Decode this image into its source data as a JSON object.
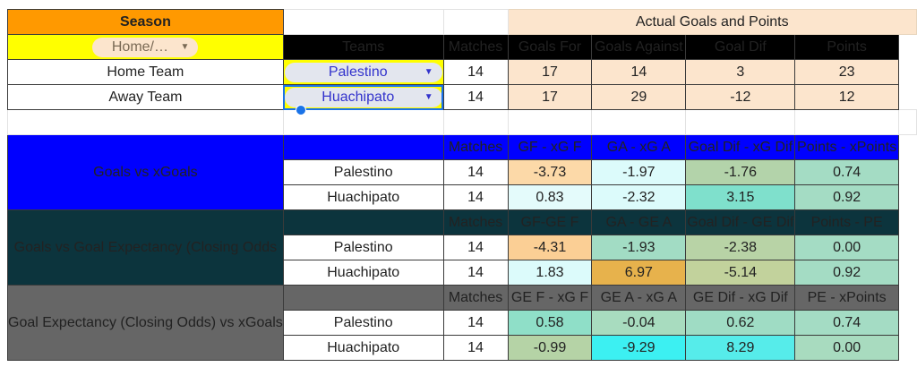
{
  "top": {
    "season_label": "Season",
    "actual_header": "Actual Goals and Points",
    "filter_value": "Home/…",
    "columns": [
      "Teams",
      "Matches",
      "Goals For",
      "Goals Against",
      "Goal Dif",
      "Points"
    ],
    "rows": [
      {
        "label": "Home Team",
        "team": "Palestino",
        "matches": "14",
        "gf": "17",
        "ga": "14",
        "gd": "3",
        "pts": "23"
      },
      {
        "label": "Away Team",
        "team": "Huachipato",
        "matches": "14",
        "gf": "17",
        "ga": "29",
        "gd": "-12",
        "pts": "12"
      }
    ]
  },
  "sections": [
    {
      "title": "Goals vs xGoals",
      "theme": "blue",
      "columns": [
        "Matches",
        "GF - xG F",
        "GA - xG A",
        "Goal Dif - xG Dif",
        "Points - xPoints"
      ],
      "rows": [
        {
          "team": "Palestino",
          "matches": "14",
          "values": [
            "-3.73",
            "-1.97",
            "-1.76",
            "0.74"
          ],
          "colors": [
            "#fcd9a8",
            "#dcfbfb",
            "#b3d3aa",
            "#a4dcc4"
          ]
        },
        {
          "team": "Huachipato",
          "matches": "14",
          "values": [
            "0.83",
            "-2.32",
            "3.15",
            "0.92"
          ],
          "colors": [
            "#e4fbfb",
            "#dcfbfb",
            "#7fe0cc",
            "#a4dcc4"
          ]
        }
      ]
    },
    {
      "title": "Goals vs Goal Expectancy (Closing Odds",
      "theme": "teal",
      "columns": [
        "Matches",
        "GF-GE F",
        "GA - GE A",
        "Goal Dif - GE Dif",
        "Points - PE"
      ],
      "rows": [
        {
          "team": "Palestino",
          "matches": "14",
          "values": [
            "-4.31",
            "-1.93",
            "-2.38",
            "0.00"
          ],
          "colors": [
            "#fbcf95",
            "#a2dcc4",
            "#b8d3a6",
            "#a4dcc4"
          ]
        },
        {
          "team": "Huachipato",
          "matches": "14",
          "values": [
            "1.83",
            "6.97",
            "-5.14",
            "0.92"
          ],
          "colors": [
            "#dcfbfb",
            "#e7b24c",
            "#c2d29c",
            "#a4dcc4"
          ]
        }
      ]
    },
    {
      "title": "Goal Expectancy (Closing Odds) vs xGoals",
      "theme": "gray",
      "columns": [
        "Matches",
        "GE F - xG F",
        "GE A - xG A",
        "GE Dif - xG Dif",
        "PE - xPoints"
      ],
      "rows": [
        {
          "team": "Palestino",
          "matches": "14",
          "values": [
            "0.58",
            "-0.04",
            "0.62",
            "0.74"
          ],
          "colors": [
            "#8fdfc8",
            "#a8dcbf",
            "#9fdcc4",
            "#a4dcc4"
          ]
        },
        {
          "team": "Huachipato",
          "matches": "14",
          "values": [
            "-0.99",
            "-9.29",
            "8.29",
            "0.00"
          ],
          "colors": [
            "#b5d3a6",
            "#3cf0f2",
            "#56ecea",
            "#a8dbbf"
          ]
        }
      ]
    }
  ]
}
